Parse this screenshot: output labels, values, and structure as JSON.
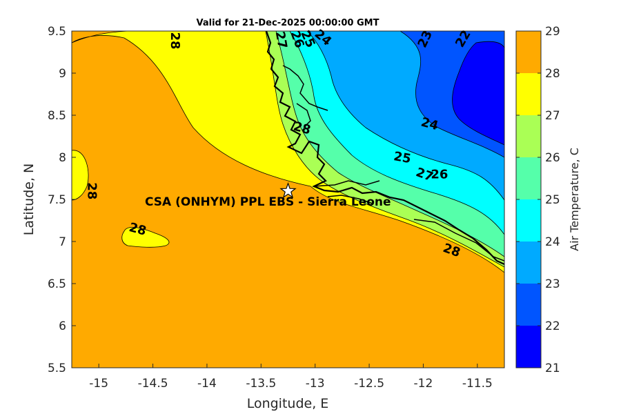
{
  "title": "Valid for 21-Dec-2025 00:00:00 GMT",
  "x_axis": {
    "label": "Longitude, E",
    "range": [
      -15.25,
      -11.25
    ],
    "ticks": [
      "-15",
      "-14.5",
      "-14",
      "-13.5",
      "-13",
      "-12.5",
      "-12",
      "-11.5"
    ]
  },
  "y_axis": {
    "label": "Latitude, N",
    "range": [
      5.5,
      9.5
    ],
    "ticks": [
      "5.5",
      "6",
      "6.5",
      "7",
      "7.5",
      "8",
      "8.5",
      "9",
      "9.5"
    ]
  },
  "colorbar": {
    "label": "Air Temperature, C",
    "ticks": [
      "21",
      "22",
      "23",
      "24",
      "25",
      "26",
      "27",
      "28",
      "29"
    ],
    "colors": [
      "#0000ff",
      "#0055ff",
      "#00aaff",
      "#00ffff",
      "#55ffaa",
      "#aaff55",
      "#ffff00",
      "#ffaa00",
      "#ff5500"
    ]
  },
  "contour_labels": [
    {
      "text": "28",
      "lon": -14.33,
      "lat": 9.7
    },
    {
      "text": "28",
      "lon": -15.1,
      "lat": 7.6
    },
    {
      "text": "28",
      "lon": -14.65,
      "lat": 7.1
    },
    {
      "text": "28",
      "lon": -13.13,
      "lat": 8.3
    },
    {
      "text": "28",
      "lon": -11.75,
      "lat": 6.85
    },
    {
      "text": "27",
      "lon": -13.35,
      "lat": 9.5
    },
    {
      "text": "26",
      "lon": -13.2,
      "lat": 9.55
    },
    {
      "text": "25",
      "lon": -13.1,
      "lat": 9.6
    },
    {
      "text": "24",
      "lon": -12.95,
      "lat": 9.75
    },
    {
      "text": "23",
      "lon": -11.95,
      "lat": 9.5
    },
    {
      "text": "22",
      "lon": -11.6,
      "lat": 9.7
    },
    {
      "text": "24",
      "lon": -11.95,
      "lat": 8.35
    },
    {
      "text": "25",
      "lon": -12.2,
      "lat": 7.95
    },
    {
      "text": "26",
      "lon": -11.85,
      "lat": 7.75
    },
    {
      "text": "27",
      "lon": -12.0,
      "lat": 7.75
    }
  ],
  "site": {
    "name": "CSA (ONHYM) PPL EBS  - Sierra Leone",
    "lon": -13.25,
    "lat": 7.6
  }
}
